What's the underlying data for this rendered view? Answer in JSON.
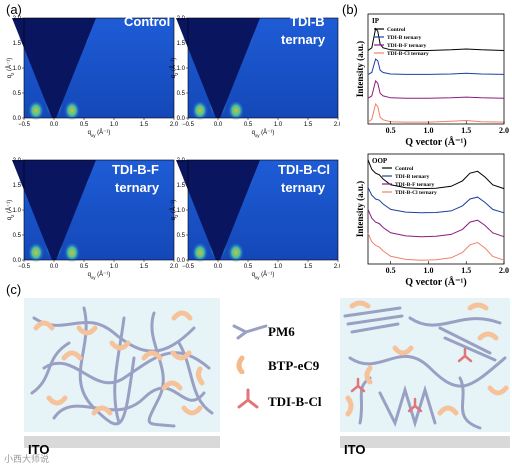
{
  "panel_labels": {
    "a": "(a)",
    "b": "(b)",
    "c": "(c)"
  },
  "giwaxs": {
    "x_label": "q",
    "x_sub": "xy",
    "y_label": "q",
    "y_sub": "z",
    "unit": "(Å⁻¹)",
    "x_ticks": [
      "−0.5",
      "0.0",
      "0.5",
      "1.0",
      "1.5",
      "2.0"
    ],
    "y_ticks": [
      "0.0",
      "0.5",
      "1.0",
      "1.5",
      "2.0"
    ],
    "panels": [
      {
        "line1": "Control",
        "line2": ""
      },
      {
        "line1": "TDI-B",
        "line2": "ternary"
      },
      {
        "line1": "TDI-B-F",
        "line2": "ternary"
      },
      {
        "line1": "TDI-B-Cl",
        "line2": "ternary"
      }
    ]
  },
  "chart_data": [
    {
      "type": "line",
      "title": "IP",
      "xlabel": "Q vector (Å⁻¹)",
      "ylabel": "Intensity (a.u.)",
      "xlim": [
        0.2,
        2.0
      ],
      "x_ticks": [
        "0.5",
        "1.0",
        "1.5",
        "2.0"
      ],
      "legend_position": "top-left",
      "series": [
        {
          "name": "Control",
          "color": "#000000",
          "x": [
            0.2,
            0.25,
            0.3,
            0.33,
            0.36,
            0.4,
            0.5,
            0.7,
            1.0,
            1.3,
            1.5,
            1.7,
            2.0
          ],
          "y": [
            0.05,
            0.12,
            0.62,
            0.55,
            0.22,
            0.12,
            0.07,
            0.05,
            0.05,
            0.07,
            0.09,
            0.07,
            0.05
          ]
        },
        {
          "name": "TDI-B ternary",
          "color": "#1f3f9f",
          "x": [
            0.2,
            0.25,
            0.3,
            0.33,
            0.36,
            0.4,
            0.5,
            0.7,
            1.0,
            1.3,
            1.5,
            1.7,
            2.0
          ],
          "y": [
            0.05,
            0.1,
            0.45,
            0.4,
            0.16,
            0.1,
            0.06,
            0.05,
            0.05,
            0.06,
            0.08,
            0.06,
            0.05
          ]
        },
        {
          "name": "TDI-B-F ternary",
          "color": "#8b1c7e",
          "x": [
            0.2,
            0.25,
            0.3,
            0.33,
            0.36,
            0.4,
            0.5,
            0.7,
            1.0,
            1.3,
            1.5,
            1.7,
            2.0
          ],
          "y": [
            0.05,
            0.11,
            0.5,
            0.44,
            0.18,
            0.11,
            0.06,
            0.05,
            0.05,
            0.06,
            0.08,
            0.06,
            0.05
          ]
        },
        {
          "name": "TDI-B-Cl ternary",
          "color": "#f0806a",
          "x": [
            0.2,
            0.25,
            0.3,
            0.33,
            0.36,
            0.4,
            0.5,
            0.7,
            1.0,
            1.3,
            1.5,
            1.7,
            2.0
          ],
          "y": [
            0.05,
            0.12,
            0.52,
            0.45,
            0.18,
            0.11,
            0.06,
            0.05,
            0.05,
            0.07,
            0.09,
            0.06,
            0.05
          ]
        }
      ]
    },
    {
      "type": "line",
      "title": "OOP",
      "xlabel": "Q vector (Å⁻¹)",
      "ylabel": "Intensity (a.u.)",
      "xlim": [
        0.2,
        2.0
      ],
      "x_ticks": [
        "0.5",
        "1.0",
        "1.5",
        "2.0"
      ],
      "legend_position": "top-center",
      "series": [
        {
          "name": "Control",
          "color": "#000000",
          "x": [
            0.2,
            0.25,
            0.3,
            0.35,
            0.4,
            0.5,
            0.7,
            0.9,
            1.1,
            1.3,
            1.45,
            1.55,
            1.65,
            1.75,
            1.85,
            2.0
          ],
          "y": [
            0.85,
            0.6,
            0.5,
            0.46,
            0.35,
            0.2,
            0.12,
            0.1,
            0.11,
            0.16,
            0.3,
            0.5,
            0.55,
            0.4,
            0.2,
            0.1
          ]
        },
        {
          "name": "TDI-B ternary",
          "color": "#1f3f9f",
          "x": [
            0.2,
            0.25,
            0.3,
            0.35,
            0.4,
            0.5,
            0.7,
            0.9,
            1.1,
            1.3,
            1.45,
            1.55,
            1.65,
            1.75,
            1.85,
            2.0
          ],
          "y": [
            0.75,
            0.55,
            0.45,
            0.42,
            0.32,
            0.18,
            0.11,
            0.09,
            0.1,
            0.14,
            0.27,
            0.45,
            0.5,
            0.36,
            0.18,
            0.09
          ]
        },
        {
          "name": "TDI-B-F ternary",
          "color": "#8b1c7e",
          "x": [
            0.2,
            0.25,
            0.3,
            0.35,
            0.4,
            0.5,
            0.7,
            0.9,
            1.1,
            1.3,
            1.45,
            1.55,
            1.65,
            1.75,
            1.85,
            2.0
          ],
          "y": [
            0.8,
            0.57,
            0.47,
            0.43,
            0.33,
            0.19,
            0.11,
            0.09,
            0.1,
            0.15,
            0.28,
            0.47,
            0.52,
            0.38,
            0.19,
            0.09
          ]
        },
        {
          "name": "TDI-B-Cl ternary",
          "color": "#f0806a",
          "x": [
            0.2,
            0.25,
            0.3,
            0.35,
            0.4,
            0.5,
            0.7,
            0.9,
            1.1,
            1.3,
            1.45,
            1.55,
            1.65,
            1.75,
            1.85,
            2.0
          ],
          "y": [
            0.8,
            0.58,
            0.48,
            0.44,
            0.34,
            0.2,
            0.12,
            0.1,
            0.11,
            0.16,
            0.3,
            0.5,
            0.56,
            0.41,
            0.2,
            0.1
          ]
        }
      ]
    }
  ],
  "schematic": {
    "legend": [
      {
        "label": "PM6",
        "icon": "polymer-chain-icon",
        "color": "#9aa0c4"
      },
      {
        "label": "BTP-eC9",
        "icon": "acceptor-arc-icon",
        "color": "#f6b98a"
      },
      {
        "label": "TDI-B-Cl",
        "icon": "tripod-molecule-icon",
        "color": "#e0767a"
      }
    ],
    "substrate_left": "ITO",
    "substrate_right": "ITO",
    "background_color": "#e6f3f7"
  },
  "watermark": "小西大师说"
}
